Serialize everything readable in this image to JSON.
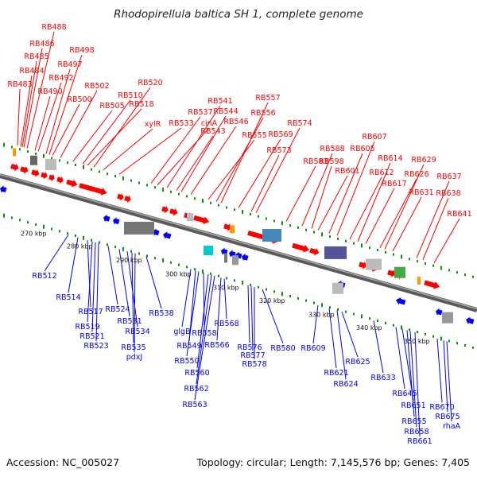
{
  "title": "Rhodopirellula baltica SH 1, complete genome",
  "accession": "Accession: NC_005027",
  "summary": "Topology: circular; Length: 7,145,576 bp; Genes: 7,405",
  "colors": {
    "forward": "#ff0000",
    "reverse": "#0000ff",
    "backbone": "#777777",
    "tick": "#009900",
    "background": "#ffffff"
  },
  "scale_ticks": [
    "270 kbp",
    "280 kbp",
    "290 kbp",
    "300 kbp",
    "310 kbp",
    "320 kbp",
    "330 kbp",
    "340 kbp",
    "350 kbp"
  ],
  "forward_labels": [
    "RB483",
    "RB484",
    "RB485",
    "RB486",
    "RB488",
    "RB490",
    "RB492",
    "RB497",
    "RB498",
    "RB500",
    "RB502",
    "RB505",
    "RB510",
    "RB518",
    "RB520",
    "xylR",
    "RB533",
    "RB537",
    "cinA",
    "RB541",
    "RB543",
    "RB544",
    "RB546",
    "RB555",
    "RB556",
    "RB557",
    "RB569",
    "RB573",
    "RB574",
    "RB583",
    "RB588",
    "RB598",
    "RB601",
    "RB605",
    "RB607",
    "RB612",
    "RB614",
    "RB617",
    "RB626",
    "RB629",
    "RB631",
    "RB637",
    "RB638",
    "RB641"
  ],
  "reverse_labels": [
    "RB512",
    "RB514",
    "RB517",
    "RB519",
    "RB521",
    "RB523",
    "RB524",
    "RB531",
    "RB534",
    "RB535",
    "pdxJ",
    "RB538",
    "glgB",
    "RB549",
    "RB550",
    "RB558",
    "RB560",
    "RB562",
    "RB563",
    "RB566",
    "RB568",
    "RB576",
    "RB577",
    "RB578",
    "RB580",
    "RB609",
    "RB621",
    "RB624",
    "RB625",
    "RB633",
    "RB645",
    "RB651",
    "RB655",
    "RB658",
    "RB661",
    "RB670",
    "RB675",
    "rhaA"
  ]
}
